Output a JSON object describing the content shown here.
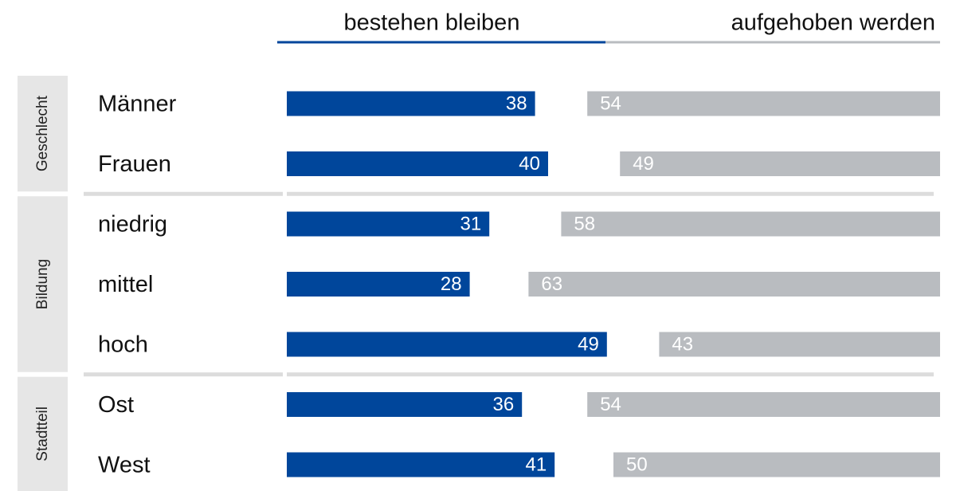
{
  "chart_data": {
    "type": "bar",
    "groups": [
      {
        "name": "Geschlecht",
        "categories": [
          "Männer",
          "Frauen"
        ]
      },
      {
        "name": "Bildung",
        "categories": [
          "niedrig",
          "mittel",
          "hoch"
        ]
      },
      {
        "name": "Stadtteil",
        "categories": [
          "Ost",
          "West"
        ]
      }
    ],
    "series": [
      {
        "name": "bestehen bleiben",
        "color": "#00469b",
        "align": "left",
        "values": [
          38,
          40,
          31,
          28,
          49,
          36,
          41
        ]
      },
      {
        "name": "aufgehoben werden",
        "color": "#b9bcc0",
        "align": "right",
        "values": [
          54,
          49,
          58,
          63,
          43,
          54,
          50
        ]
      }
    ],
    "xlim": [
      0,
      100
    ]
  }
}
